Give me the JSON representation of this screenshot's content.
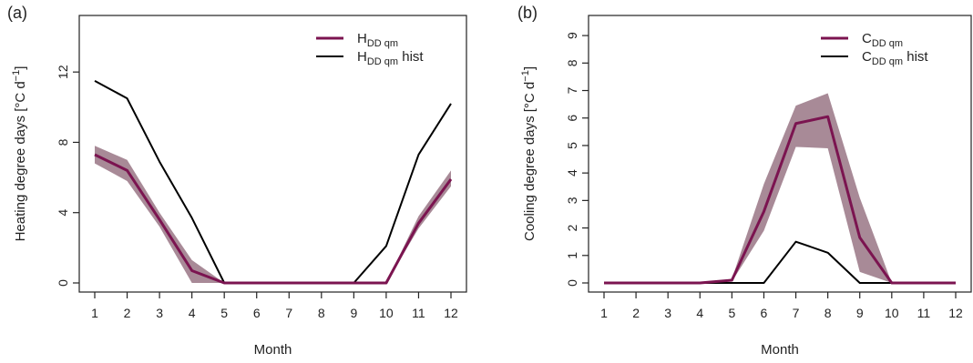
{
  "chart_data": [
    {
      "type": "line",
      "panel_label": "(a)",
      "xlabel": "Month",
      "ylabel": "Heating degree days [°C d",
      "ylabel_sup": "−1",
      "ylabel_close": "]",
      "x": [
        1,
        2,
        3,
        4,
        5,
        6,
        7,
        8,
        9,
        10,
        11,
        12
      ],
      "xlim": [
        1,
        12
      ],
      "ylim": [
        0,
        15
      ],
      "yticks": [
        0,
        4,
        8,
        12
      ],
      "series": [
        {
          "name_main": "H",
          "name_sub": "DD qm",
          "name_suffix": "",
          "color": "#7b1450",
          "values": [
            7.3,
            6.4,
            3.6,
            0.7,
            0,
            0,
            0,
            0,
            0,
            0,
            3.4,
            5.9
          ],
          "band_low": [
            6.8,
            5.8,
            3.2,
            0.0,
            0,
            0,
            0,
            0,
            0,
            0,
            3.1,
            5.5
          ],
          "band_high": [
            7.8,
            7.0,
            4.0,
            1.3,
            0,
            0,
            0,
            0,
            0,
            0,
            3.8,
            6.4
          ],
          "band_color": "#a88a97"
        },
        {
          "name_main": "H",
          "name_sub": "DD qm",
          "name_suffix": " hist",
          "color": "#000000",
          "values": [
            11.5,
            10.5,
            6.9,
            3.7,
            0,
            0,
            0,
            0,
            0,
            2.1,
            7.3,
            10.2
          ]
        }
      ],
      "legend_position": "top-right",
      "grid": false
    },
    {
      "type": "line",
      "panel_label": "(b)",
      "xlabel": "Month",
      "ylabel": "Cooling degree days [°C d",
      "ylabel_sup": "−1",
      "ylabel_close": "]",
      "x": [
        1,
        2,
        3,
        4,
        5,
        6,
        7,
        8,
        9,
        10,
        11,
        12
      ],
      "xlim": [
        1,
        12
      ],
      "ylim": [
        0,
        9
      ],
      "yticks": [
        0,
        1,
        2,
        3,
        4,
        5,
        6,
        7,
        8,
        9
      ],
      "series": [
        {
          "name_main": "C",
          "name_sub": "DD qm",
          "name_suffix": "",
          "color": "#7b1450",
          "values": [
            0,
            0,
            0,
            0,
            0.1,
            2.6,
            5.8,
            6.05,
            1.65,
            0,
            0,
            0
          ],
          "band_low": [
            0,
            0,
            0,
            0,
            0.05,
            1.9,
            4.95,
            4.9,
            0.4,
            0,
            0,
            0
          ],
          "band_high": [
            0,
            0,
            0,
            0,
            0.15,
            3.6,
            6.45,
            6.9,
            3.1,
            0,
            0,
            0
          ],
          "band_color": "#a88a97"
        },
        {
          "name_main": "C",
          "name_sub": "DD qm",
          "name_suffix": " hist",
          "color": "#000000",
          "values": [
            0,
            0,
            0,
            0,
            0,
            0,
            1.5,
            1.1,
            0,
            0,
            0,
            0
          ]
        }
      ],
      "legend_position": "top-right",
      "grid": false
    }
  ]
}
